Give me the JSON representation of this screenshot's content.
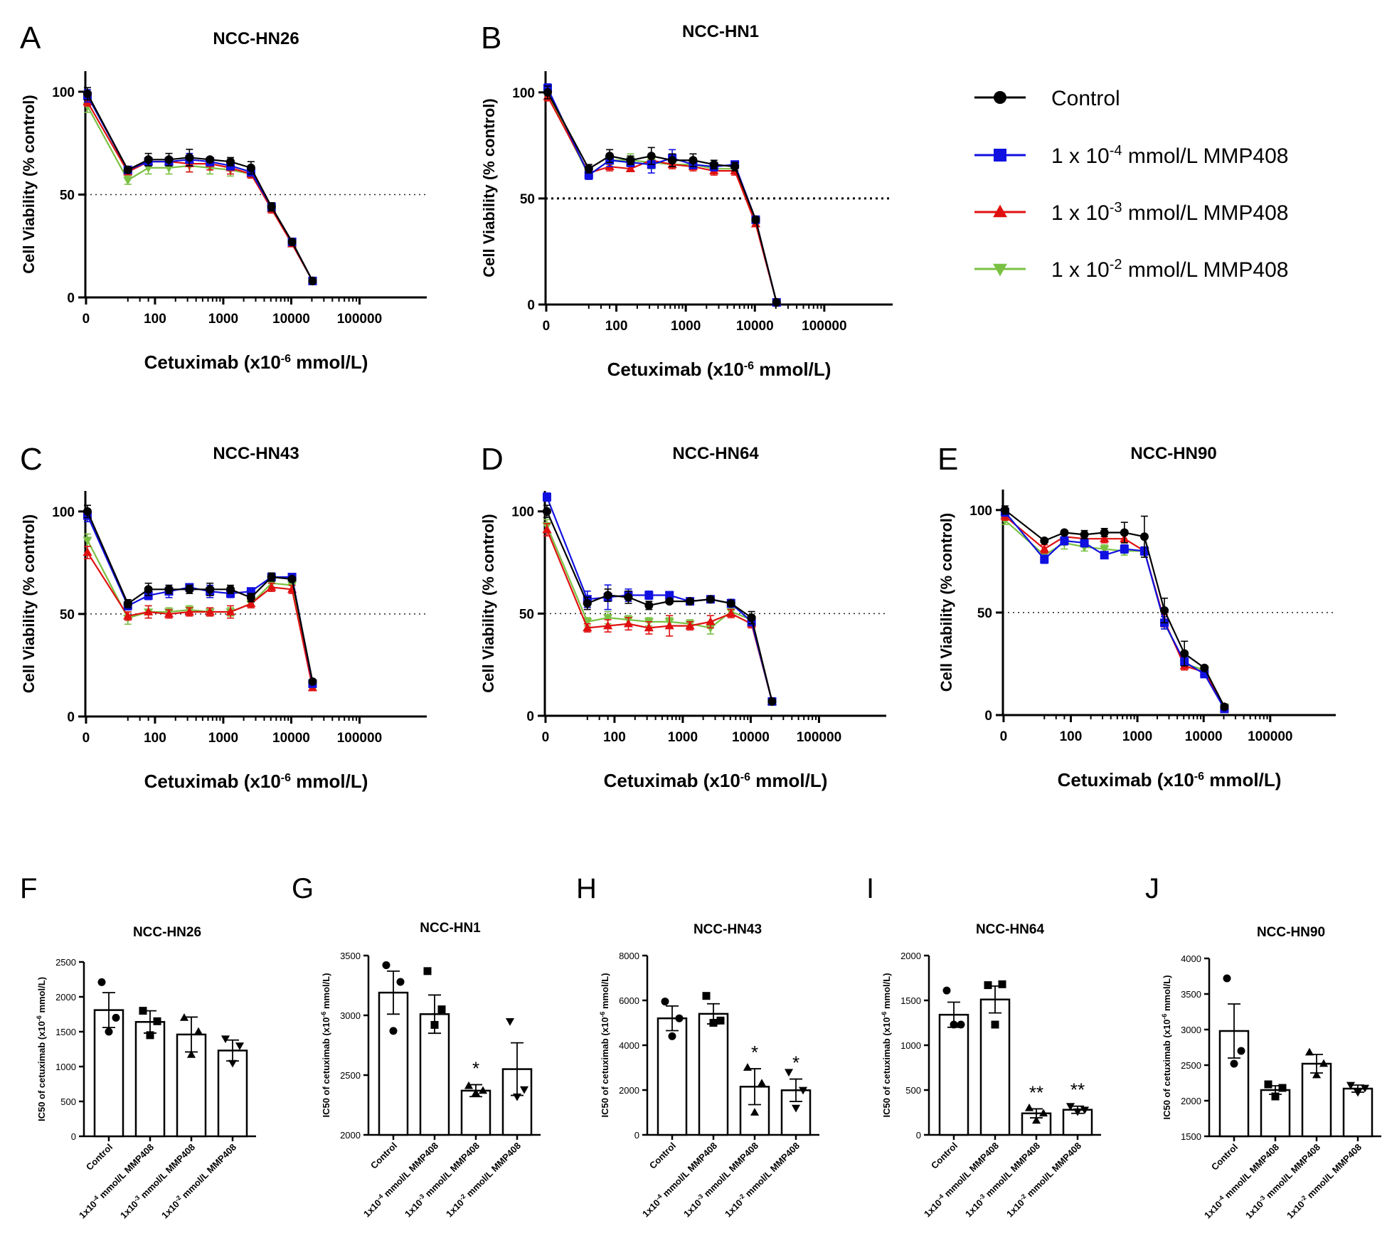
{
  "legend": {
    "entries": [
      {
        "name": "Control",
        "color": "#000000",
        "marker": "circle"
      },
      {
        "name": "1 x 10-4 mmol/L MMP408",
        "prefix": "1 x 10",
        "exp": "-4",
        "suffix": " mmol/L MMP408",
        "color": "#1010e0",
        "marker": "square"
      },
      {
        "name": "1 x 10-3 mmol/L MMP408",
        "prefix": "1 x 10",
        "exp": "-3",
        "suffix": " mmol/L MMP408",
        "color": "#e01010",
        "marker": "triangle-up"
      },
      {
        "name": "1 x 10-2 mmol/L MMP408",
        "prefix": "1 x 10",
        "exp": "-2",
        "suffix": " mmol/L MMP408",
        "color": "#7ac143",
        "marker": "triangle-down"
      }
    ]
  },
  "chart_data": [
    {
      "type": "line",
      "panel": "A",
      "title": "NCC-HN26",
      "ylabel": "Cell Viability (% control)",
      "xlabel": "Cetuximab (x10-6 mmol/L)",
      "xlabel_parts": [
        "Cetuximab (x10",
        "-6",
        " mmol/L)"
      ],
      "xscale": "log",
      "xticks": [
        "0",
        "100",
        "1000",
        "10000",
        "100000"
      ],
      "ylim": [
        0,
        110
      ],
      "yticks": [
        0,
        50,
        100
      ],
      "reference_line": 50,
      "reference_style": "dotted",
      "x": [
        0,
        40,
        80,
        160,
        320,
        640,
        1280,
        2560,
        5120,
        10240,
        20480
      ],
      "series": [
        {
          "name": "Control",
          "values": [
            99,
            62,
            67,
            67,
            68,
            67,
            66,
            63,
            44,
            27,
            8
          ],
          "err": [
            3,
            1,
            3,
            3,
            4,
            1,
            2,
            3,
            2,
            1,
            1
          ]
        },
        {
          "name": "1 x 10-4 mmol/L MMP408",
          "values": [
            98,
            62,
            66,
            66,
            67,
            66,
            64,
            61,
            44,
            27,
            8
          ],
          "err": [
            3,
            1,
            2,
            2,
            3,
            2,
            2,
            2,
            2,
            1,
            1
          ]
        },
        {
          "name": "1 x 10-3 mmol/L MMP408",
          "values": [
            95,
            61,
            66,
            66,
            65,
            65,
            63,
            60,
            43,
            26,
            8
          ],
          "err": [
            2,
            1,
            2,
            2,
            4,
            3,
            3,
            2,
            2,
            1,
            1
          ]
        },
        {
          "name": "1 x 10-2 mmol/L MMP408",
          "values": [
            93,
            57,
            63,
            63,
            64,
            63,
            62,
            60,
            44,
            27,
            8
          ],
          "err": [
            3,
            2,
            3,
            3,
            3,
            3,
            3,
            2,
            2,
            1,
            1
          ]
        }
      ]
    },
    {
      "type": "line",
      "panel": "B",
      "title": "NCC-HN1",
      "ylabel": "Cell Viability (% control)",
      "xlabel": "Cetuximab (x10-6 mmol/L)",
      "xlabel_parts": [
        "Cetuximab (x10",
        "-6",
        " mmol/L)"
      ],
      "xscale": "log",
      "xticks": [
        "0",
        "100",
        "1000",
        "10000",
        "100000"
      ],
      "ylim": [
        0,
        110
      ],
      "yticks": [
        0,
        50,
        100
      ],
      "reference_line": 50,
      "reference_style": "dotted-bold",
      "x": [
        0,
        40,
        80,
        160,
        320,
        640,
        1280,
        2560,
        5120,
        10240,
        20480
      ],
      "series": [
        {
          "name": "Control",
          "values": [
            100,
            64,
            70,
            68,
            70,
            68,
            68,
            66,
            65,
            40,
            1
          ],
          "err": [
            3,
            2,
            3,
            2,
            4,
            3,
            3,
            2,
            2,
            1,
            1
          ]
        },
        {
          "name": "1 x 10-4 mmol/L MMP408",
          "values": [
            102,
            61,
            68,
            67,
            66,
            69,
            66,
            65,
            66,
            40,
            1
          ],
          "err": [
            2,
            2,
            3,
            2,
            4,
            4,
            2,
            2,
            1,
            1,
            1
          ]
        },
        {
          "name": "1 x 10-3 mmol/L MMP408",
          "values": [
            98,
            62,
            65,
            64,
            68,
            66,
            65,
            63,
            63,
            38,
            1
          ],
          "err": [
            2,
            2,
            2,
            1,
            2,
            2,
            2,
            2,
            2,
            1,
            1
          ]
        },
        {
          "name": "1 x 10-2 mmol/L MMP408",
          "values": [
            99,
            61,
            68,
            68,
            67,
            66,
            66,
            64,
            64,
            39,
            1
          ],
          "err": [
            3,
            2,
            2,
            3,
            3,
            2,
            2,
            2,
            2,
            1,
            1
          ]
        }
      ]
    },
    {
      "type": "line",
      "panel": "C",
      "title": "NCC-HN43",
      "ylabel": "Cell Viability (% control)",
      "xlabel": "Cetuximab (x10-6 mmol/L)",
      "xlabel_parts": [
        "Cetuximab (x10",
        "-6",
        " mmol/L)"
      ],
      "xscale": "log",
      "xticks": [
        "0",
        "100",
        "1000",
        "10000",
        "100000"
      ],
      "ylim": [
        0,
        110
      ],
      "yticks": [
        0,
        50,
        100
      ],
      "reference_line": 50,
      "reference_style": "dotted",
      "x": [
        0,
        40,
        80,
        160,
        320,
        640,
        1280,
        2560,
        5120,
        10240,
        20480
      ],
      "series": [
        {
          "name": "Control",
          "values": [
            100,
            55,
            62,
            62,
            62,
            62,
            62,
            58,
            68,
            67,
            17
          ],
          "err": [
            3,
            2,
            3,
            2,
            2,
            3,
            2,
            2,
            2,
            1,
            1
          ]
        },
        {
          "name": "1 x 10-4 mmol/L MMP408",
          "values": [
            98,
            54,
            59,
            61,
            63,
            61,
            60,
            61,
            68,
            68,
            16
          ],
          "err": [
            3,
            2,
            2,
            3,
            1,
            3,
            2,
            1,
            2,
            1,
            1
          ]
        },
        {
          "name": "1 x 10-3 mmol/L MMP408",
          "values": [
            80,
            49,
            51,
            50,
            51,
            51,
            51,
            55,
            63,
            62,
            14
          ],
          "err": [
            3,
            2,
            3,
            2,
            2,
            2,
            3,
            2,
            2,
            2,
            1
          ]
        },
        {
          "name": "1 x 10-2 mmol/L MMP408",
          "values": [
            86,
            48,
            51,
            51,
            52,
            51,
            51,
            55,
            65,
            64,
            15
          ],
          "err": [
            3,
            3,
            3,
            2,
            2,
            2,
            2,
            2,
            2,
            2,
            1
          ]
        }
      ]
    },
    {
      "type": "line",
      "panel": "D",
      "title": "NCC-HN64",
      "ylabel": "Cell Viability (% control)",
      "xlabel": "Cetuximab (x10-6 mmol/L)",
      "xlabel_parts": [
        "Cetuximab (x10",
        "-6",
        " mmol/L)"
      ],
      "xscale": "log",
      "xticks": [
        "0",
        "100",
        "1000",
        "10000",
        "100000"
      ],
      "ylim": [
        0,
        110
      ],
      "yticks": [
        0,
        50,
        100
      ],
      "reference_line": 50,
      "reference_style": "dotted",
      "x": [
        0,
        40,
        80,
        160,
        320,
        640,
        1280,
        2560,
        5120,
        10240,
        20480
      ],
      "series": [
        {
          "name": "Control",
          "values": [
            100,
            55,
            59,
            58,
            54,
            56,
            56,
            57,
            55,
            48,
            7
          ],
          "err": [
            3,
            3,
            3,
            3,
            2,
            1,
            1,
            1,
            1,
            3,
            1
          ]
        },
        {
          "name": "1 x 10-4 mmol/L MMP408",
          "values": [
            107,
            57,
            58,
            59,
            59,
            59,
            56,
            57,
            55,
            46,
            7
          ],
          "err": [
            2,
            4,
            6,
            3,
            2,
            1,
            1,
            1,
            2,
            2,
            1
          ]
        },
        {
          "name": "1 x 10-3 mmol/L MMP408",
          "values": [
            91,
            43,
            44,
            45,
            43,
            44,
            44,
            46,
            50,
            45,
            7
          ],
          "err": [
            3,
            2,
            3,
            3,
            3,
            5,
            2,
            3,
            2,
            2,
            1
          ]
        },
        {
          "name": "1 x 10-2 mmol/L MMP408",
          "values": [
            93,
            46,
            48,
            47,
            46,
            46,
            45,
            43,
            51,
            47,
            7
          ],
          "err": [
            3,
            2,
            3,
            2,
            2,
            2,
            2,
            3,
            2,
            2,
            1
          ]
        }
      ]
    },
    {
      "type": "line",
      "panel": "E",
      "title": "NCC-HN90",
      "ylabel": "Cell Viability (% control)",
      "xlabel": "Cetuximab (x10-6 mmol/L)",
      "xlabel_parts": [
        "Cetuximab (x10",
        "-6",
        " mmol/L)"
      ],
      "xscale": "log",
      "xticks": [
        "0",
        "100",
        "1000",
        "10000",
        "100000"
      ],
      "ylim": [
        0,
        110
      ],
      "yticks": [
        0,
        50,
        100
      ],
      "reference_line": 50,
      "reference_style": "dotted",
      "x": [
        0,
        40,
        80,
        160,
        320,
        640,
        1280,
        2560,
        5120,
        10240,
        20480
      ],
      "series": [
        {
          "name": "Control",
          "values": [
            100,
            85,
            89,
            88,
            89,
            89,
            87,
            51,
            30,
            23,
            4
          ],
          "err": [
            2,
            1,
            1,
            2,
            2,
            5,
            10,
            6,
            6,
            1,
            1
          ]
        },
        {
          "name": "1 x 10-4 mmol/L MMP408",
          "values": [
            99,
            76,
            85,
            84,
            78,
            81,
            80,
            45,
            26,
            20,
            3
          ],
          "err": [
            2,
            2,
            2,
            2,
            1,
            2,
            2,
            3,
            2,
            1,
            1
          ]
        },
        {
          "name": "1 x 10-3 mmol/L MMP408",
          "values": [
            97,
            81,
            87,
            86,
            86,
            86,
            80,
            46,
            24,
            21,
            4
          ],
          "err": [
            2,
            2,
            2,
            2,
            2,
            2,
            2,
            3,
            2,
            1,
            1
          ]
        },
        {
          "name": "1 x 10-2 mmol/L MMP408",
          "values": [
            95,
            78,
            84,
            82,
            81,
            80,
            80,
            45,
            25,
            22,
            4
          ],
          "err": [
            2,
            2,
            3,
            2,
            2,
            2,
            2,
            3,
            2,
            1,
            1
          ]
        }
      ]
    },
    {
      "type": "bar",
      "panel": "F",
      "title": "NCC-HN26",
      "ylabel": "IC50 of cetuximab (x10-6 mmol/L)",
      "ylabel_parts": [
        "IC50 of cetuximab (x10",
        "-6",
        " mmol/L)"
      ],
      "ylim": [
        0,
        2500
      ],
      "yticks": [
        0,
        500,
        1000,
        1500,
        2000,
        2500
      ],
      "categories": [
        "Control",
        "1x10-4 mmol/L MMP408",
        "1x10-3 mmol/L MMP408",
        "1x10-2 mmol/L MMP408"
      ],
      "values": [
        1810,
        1640,
        1460,
        1230
      ],
      "sem": [
        250,
        160,
        250,
        150
      ],
      "points": [
        [
          2210,
          1700,
          1500
        ],
        [
          1800,
          1650,
          1450
        ],
        [
          1700,
          1500,
          1170
        ],
        [
          1400,
          1300,
          1050
        ]
      ],
      "annotations": [
        "",
        "",
        "",
        ""
      ]
    },
    {
      "type": "bar",
      "panel": "G",
      "title": "NCC-HN1",
      "ylabel": "IC50 of cetuximab (x10-6 mmol/L)",
      "ylabel_parts": [
        "IC50 of cetuximab (x10",
        "-6",
        " mmol/L)"
      ],
      "ylim": [
        2000,
        3500
      ],
      "yticks": [
        2000,
        2500,
        3000,
        3500
      ],
      "categories": [
        "Control",
        "1x10-4 mmol/L MMP408",
        "1x10-3 mmol/L MMP408",
        "1x10-2 mmol/L MMP408"
      ],
      "values": [
        3190,
        3010,
        2370,
        2550
      ],
      "sem": [
        180,
        160,
        50,
        220
      ],
      "points": [
        [
          3420,
          3280,
          2870
        ],
        [
          3370,
          3050,
          2920
        ],
        [
          2410,
          2370,
          2350
        ],
        [
          2950,
          2380,
          2320
        ]
      ],
      "annotations": [
        "",
        "",
        "*",
        ""
      ]
    },
    {
      "type": "bar",
      "panel": "H",
      "title": "NCC-HN43",
      "ylabel": "IC50 of cetuximab (x10-6 mmol/L)",
      "ylabel_parts": [
        "IC50 of cetuximab (x10",
        "-6",
        " mmol/L)"
      ],
      "ylim": [
        0,
        8000
      ],
      "yticks": [
        0,
        2000,
        4000,
        6000,
        8000
      ],
      "categories": [
        "Control",
        "1x10-4 mmol/L MMP408",
        "1x10-3 mmol/L MMP408",
        "1x10-2 mmol/L MMP408"
      ],
      "values": [
        5200,
        5400,
        2150,
        1990
      ],
      "sem": [
        550,
        450,
        800,
        500
      ],
      "points": [
        [
          5950,
          5200,
          4400
        ],
        [
          6200,
          5100,
          5000
        ],
        [
          3000,
          2300,
          1000
        ],
        [
          2800,
          2000,
          1200
        ]
      ],
      "annotations": [
        "",
        "",
        "*",
        "*"
      ]
    },
    {
      "type": "bar",
      "panel": "I",
      "title": "NCC-HN64",
      "ylabel": "IC50 of cetuximab (x10-6 mmol/L)",
      "ylabel_parts": [
        "IC50 of cetuximab (x10",
        "-6",
        " mmol/L)"
      ],
      "ylim": [
        0,
        2000
      ],
      "yticks": [
        0,
        500,
        1000,
        1500,
        2000
      ],
      "categories": [
        "Control",
        "1x10-4 mmol/L MMP408",
        "1x10-3 mmol/L MMP408",
        "1x10-2 mmol/L MMP408"
      ],
      "values": [
        1340,
        1510,
        240,
        280
      ],
      "sem": [
        140,
        150,
        50,
        40
      ],
      "points": [
        [
          1610,
          1230,
          1230
        ],
        [
          1670,
          1680,
          1230
        ],
        [
          300,
          240,
          160
        ],
        [
          320,
          280,
          260
        ]
      ],
      "annotations": [
        "",
        "",
        "**",
        "**"
      ]
    },
    {
      "type": "bar",
      "panel": "J",
      "title": "NCC-HN90",
      "ylabel": "IC50 of cetuximab (x10-6 mmol/L)",
      "ylabel_parts": [
        "IC50 of cetuximab (x10",
        "-6",
        " mmol/L)"
      ],
      "ylim": [
        1500,
        4000
      ],
      "yticks": [
        1500,
        2000,
        2500,
        3000,
        3500,
        4000
      ],
      "categories": [
        "Control",
        "1x10-4 mmol/L MMP408",
        "1x10-3 mmol/L MMP408",
        "1x10-2 mmol/L MMP408"
      ],
      "values": [
        2980,
        2150,
        2520,
        2170
      ],
      "sem": [
        380,
        60,
        130,
        50
      ],
      "points": [
        [
          3720,
          2700,
          2520
        ],
        [
          2230,
          2180,
          2060
        ],
        [
          2680,
          2520,
          2360
        ],
        [
          2220,
          2180,
          2120
        ]
      ],
      "annotations": [
        "",
        "",
        "",
        ""
      ]
    }
  ]
}
